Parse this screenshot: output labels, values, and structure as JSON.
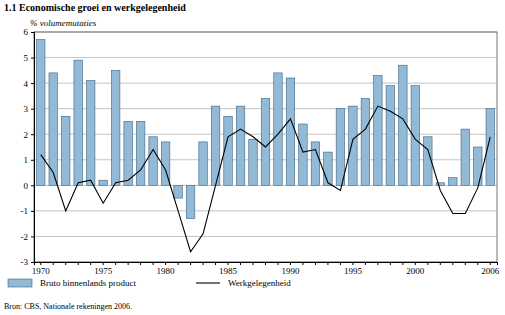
{
  "chart_data": {
    "type": "bar",
    "title": "1.1  Economische groei en werkgelegenheid",
    "ylabel": "% volumemutaties",
    "annotations": [
      "Bron: CBS, Nationale rekeningen 2006."
    ],
    "categories": [
      "1970",
      null,
      null,
      null,
      null,
      "1975",
      null,
      null,
      null,
      null,
      "1980",
      null,
      null,
      null,
      null,
      "1985",
      null,
      null,
      null,
      null,
      "1990",
      null,
      null,
      null,
      null,
      "1995",
      null,
      null,
      null,
      null,
      "2000",
      null,
      null,
      null,
      null,
      null,
      "2006"
    ],
    "series": [
      {
        "name": "Bruto binnenlands product",
        "type": "bar",
        "color": "#92b9d6",
        "values": [
          5.7,
          4.4,
          2.7,
          4.9,
          4.1,
          0.2,
          4.5,
          2.5,
          2.5,
          1.9,
          1.7,
          -0.5,
          -1.3,
          1.7,
          3.1,
          2.7,
          3.1,
          1.8,
          3.4,
          4.4,
          4.2,
          2.4,
          1.7,
          1.3,
          3.0,
          3.1,
          3.4,
          4.3,
          3.9,
          4.7,
          3.9,
          1.9,
          0.1,
          0.3,
          2.2,
          1.5,
          3.0
        ]
      },
      {
        "name": "Werkgelegenheid",
        "type": "line",
        "color": "#000000",
        "values": [
          1.2,
          0.5,
          -1.0,
          0.1,
          0.2,
          -0.7,
          0.1,
          0.2,
          0.6,
          1.4,
          0.6,
          -1.0,
          -2.6,
          -1.9,
          0.0,
          1.9,
          2.2,
          1.9,
          1.5,
          2.0,
          2.6,
          1.3,
          1.4,
          0.1,
          -0.2,
          1.8,
          2.2,
          3.1,
          2.9,
          2.6,
          1.8,
          1.4,
          -0.2,
          -1.1,
          -1.1,
          -0.1,
          1.9
        ]
      }
    ],
    "ylim": [
      -3,
      6
    ],
    "yticks": [
      -3,
      -2,
      -1,
      0,
      1,
      2,
      3,
      4,
      5,
      6
    ],
    "grid": true
  }
}
